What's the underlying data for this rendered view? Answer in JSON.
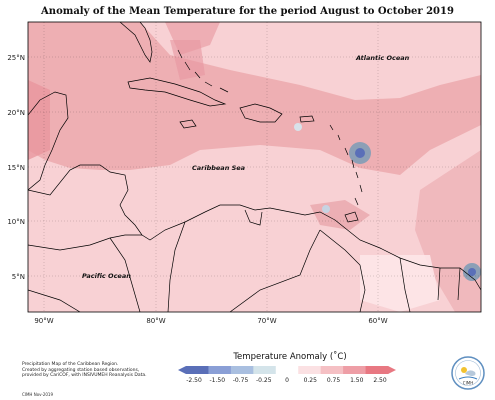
{
  "title": "Anomaly of the Mean Temperature for the period August to October 2019",
  "axes": {
    "lat_labels": [
      "25°N",
      "20°N",
      "15°N",
      "10°N",
      "5°N"
    ],
    "lon_labels": [
      "90°W",
      "80°W",
      "70°W",
      "60°W"
    ]
  },
  "map_labels": {
    "atlantic": "Atlantic Ocean",
    "caribbean": "Caribbean Sea",
    "pacific": "Pacific Ocean"
  },
  "legend": {
    "title": "Temperature Anomaly (˚C)",
    "ticks": [
      "-2.50",
      "-1.50",
      "-0.75",
      "-0.25",
      "0",
      "0.25",
      "0.75",
      "1.50",
      "2.50"
    ],
    "colors": [
      "#5a6fb8",
      "#8a9fd6",
      "#a9bfe0",
      "#d4e4ea",
      "#ffffff",
      "#fbe1e3",
      "#f5c0c4",
      "#ee9ea6",
      "#e87882"
    ]
  },
  "notes": {
    "line1": "Precipitation Map of the Caribbean Region.",
    "line2": "Created by aggregating station based observations,",
    "line3": "provided by CariCOF, with INSIVUMEH Reanalysis Data.",
    "credit": "CIMH Nov-2019"
  },
  "logo": {
    "text": "CIMH"
  },
  "colors": {
    "base_anomaly": "#f8d1d4",
    "warm_anomaly": "#eca9ad",
    "cool_anomaly": "#8c9fb6",
    "land_outline": "#000000"
  }
}
